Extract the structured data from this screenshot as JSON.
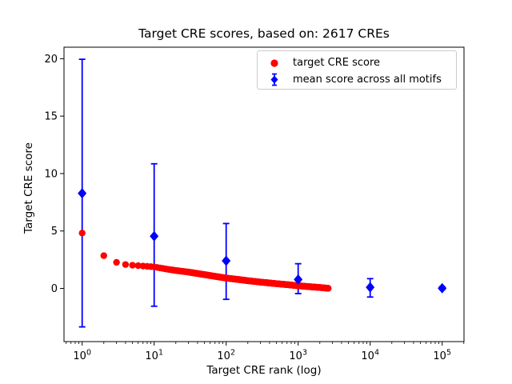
{
  "figure": {
    "background": "#ffffff"
  },
  "chart_data": {
    "type": "scatter",
    "title": "Target CRE scores, based on: 2617 CREs",
    "xlabel": "Target CRE rank (log)",
    "ylabel": "Target CRE score",
    "x_scale": "log",
    "x_tick_base": "10",
    "x_tick_exponents": [
      0,
      1,
      2,
      3,
      4,
      5
    ],
    "y_ticks": [
      0,
      5,
      10,
      15,
      20
    ],
    "x_log_range": [
      -0.2522,
      5.3033
    ],
    "y_range": [
      -4.63,
      21.0
    ],
    "grid": false,
    "legend_position": "upper right",
    "series": [
      {
        "name": "target CRE score",
        "color": "#ff0000",
        "marker": "circle",
        "kind": "scatter",
        "n_total_points": 2617,
        "curve_anchors_rank_score": [
          [
            1,
            4.82
          ],
          [
            2,
            2.85
          ],
          [
            3,
            2.27
          ],
          [
            4,
            2.08
          ],
          [
            5,
            2.02
          ],
          [
            6,
            1.98
          ],
          [
            8,
            1.92
          ],
          [
            10,
            1.87
          ],
          [
            15,
            1.68
          ],
          [
            20,
            1.56
          ],
          [
            30,
            1.42
          ],
          [
            50,
            1.2
          ],
          [
            70,
            1.05
          ],
          [
            100,
            0.9
          ],
          [
            150,
            0.77
          ],
          [
            200,
            0.67
          ],
          [
            300,
            0.55
          ],
          [
            500,
            0.41
          ],
          [
            700,
            0.33
          ],
          [
            1000,
            0.23
          ],
          [
            1500,
            0.14
          ],
          [
            2000,
            0.08
          ],
          [
            2617,
            0.01
          ]
        ]
      },
      {
        "name": "mean score across all motifs",
        "color": "#0000ff",
        "marker": "diamond",
        "kind": "errorbar",
        "points": [
          {
            "rank": 1,
            "mean": 8.28,
            "lo": -3.35,
            "hi": 19.95
          },
          {
            "rank": 10,
            "mean": 4.55,
            "lo": -1.55,
            "hi": 10.85
          },
          {
            "rank": 100,
            "mean": 2.4,
            "lo": -0.95,
            "hi": 5.65
          },
          {
            "rank": 1000,
            "mean": 0.78,
            "lo": -0.45,
            "hi": 2.15
          },
          {
            "rank": 10000,
            "mean": 0.1,
            "lo": -0.75,
            "hi": 0.85
          },
          {
            "rank": 100000,
            "mean": 0.02,
            "lo": -0.1,
            "hi": 0.15
          }
        ]
      }
    ]
  }
}
